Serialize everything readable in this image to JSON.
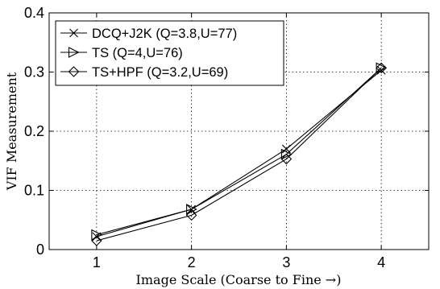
{
  "chart_data": {
    "type": "line",
    "xlabel": "Image Scale (Coarse to Fine →)",
    "ylabel": "VIF Measurement",
    "xlim": [
      0.5,
      4.5
    ],
    "ylim": [
      0,
      0.4
    ],
    "xticks": [
      1,
      2,
      3,
      4
    ],
    "xtick_labels": [
      "1",
      "2",
      "3",
      "4"
    ],
    "yticks": [
      0,
      0.1,
      0.2,
      0.3,
      0.4
    ],
    "ytick_labels": [
      "0",
      "0.1",
      "0.2",
      "0.3",
      "0.4"
    ],
    "grid": true,
    "legend_position": "top-left",
    "x": [
      1,
      2,
      3,
      4
    ],
    "series": [
      {
        "name": "DCQ+J2K (Q=3.8,U=77)",
        "marker": "x",
        "values": [
          0.022,
          0.068,
          0.17,
          0.303
        ]
      },
      {
        "name": "TS (Q=4,U=76)",
        "marker": "triangle-right",
        "values": [
          0.025,
          0.068,
          0.161,
          0.307
        ]
      },
      {
        "name": "TS+HPF (Q=3.2,U=69)",
        "marker": "diamond",
        "values": [
          0.015,
          0.058,
          0.153,
          0.307
        ]
      }
    ]
  }
}
